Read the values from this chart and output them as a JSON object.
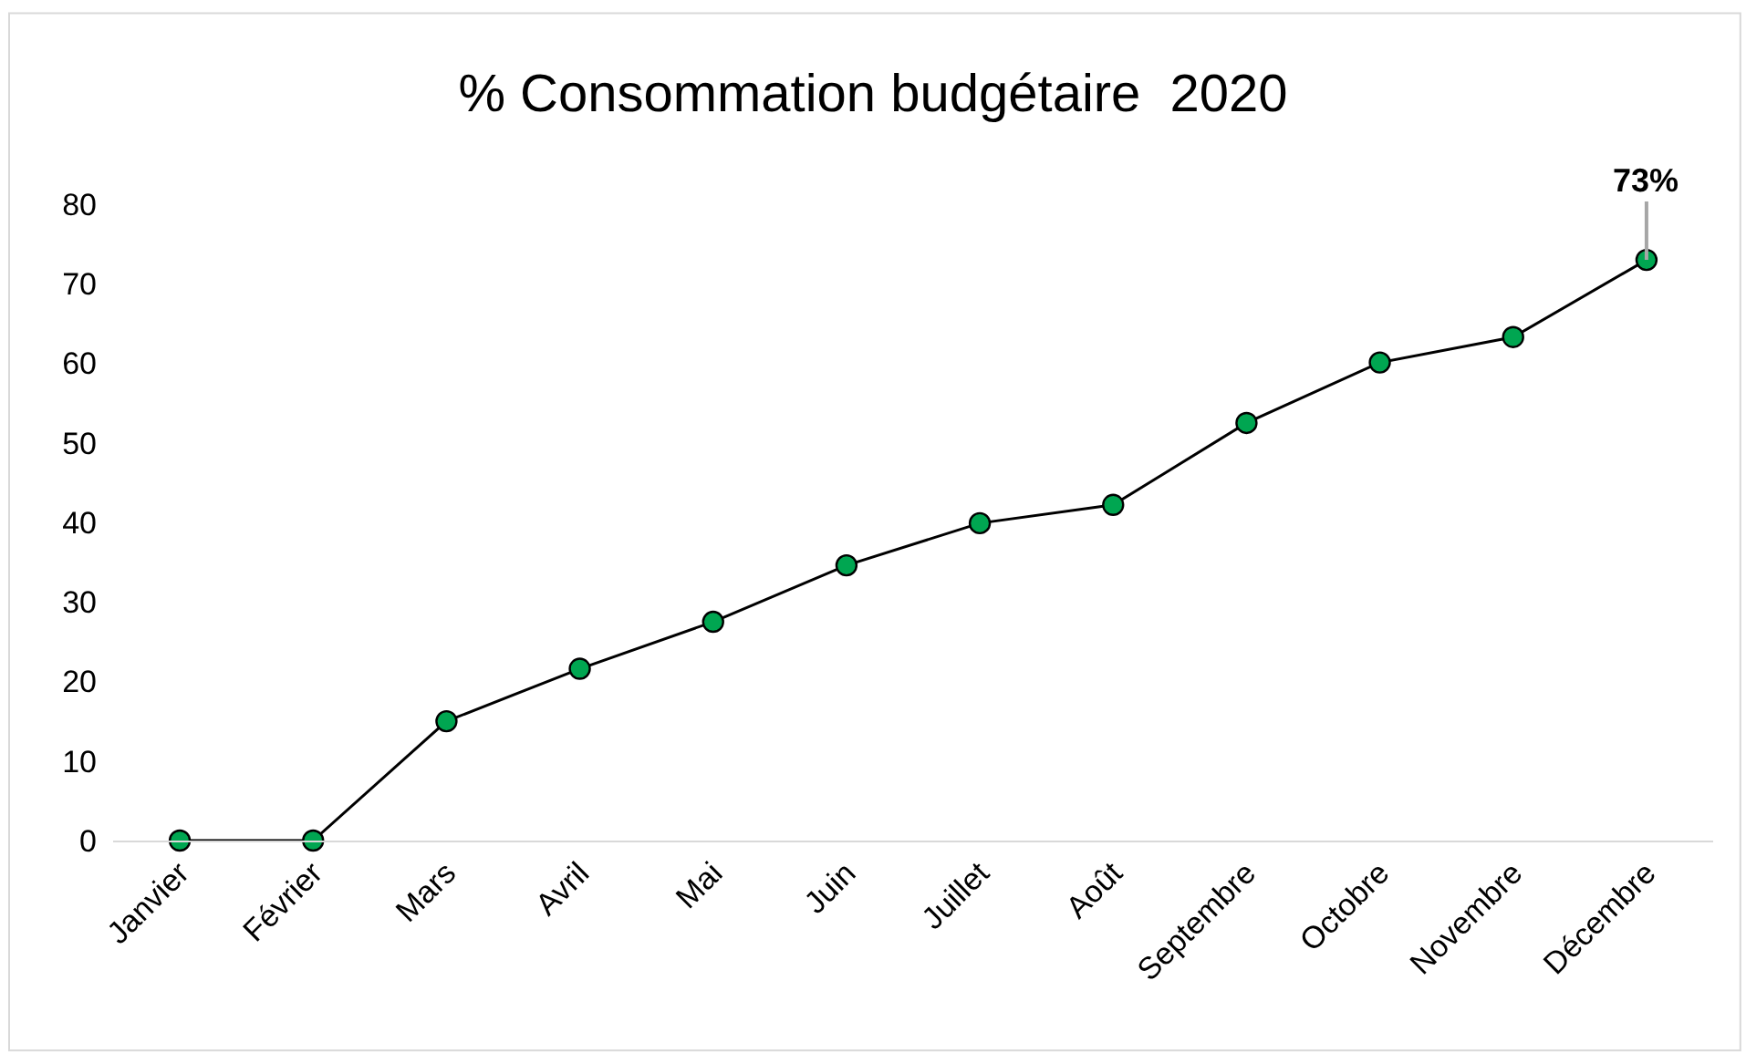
{
  "chart_data": {
    "type": "line",
    "title": "% Consommation budgétaire  2020",
    "categories": [
      "Janvier",
      "Février",
      "Mars",
      "Avril",
      "Mai",
      "Juin",
      "Juillet",
      "Août",
      "Septembre",
      "Octobre",
      "Novembre",
      "Décembre"
    ],
    "series": [
      {
        "color": "#00a651",
        "values": [
          0,
          0,
          15,
          21.6,
          27.5,
          34.6,
          39.9,
          42.2,
          52.5,
          60.1,
          63.3,
          73
        ],
        "value_labels": [
          null,
          null,
          null,
          null,
          null,
          null,
          null,
          null,
          null,
          null,
          null,
          "73%"
        ]
      }
    ],
    "ylim": [
      0,
      80
    ],
    "yticks": [
      0,
      10,
      20,
      30,
      40,
      50,
      60,
      70,
      80
    ],
    "grid": false,
    "marker": "circle",
    "line_style": "solid"
  }
}
